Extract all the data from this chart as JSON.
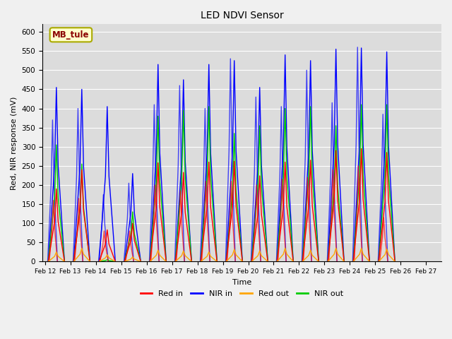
{
  "title": "LED NDVI Sensor",
  "xlabel": "Time",
  "ylabel": "Red, NIR response (mV)",
  "annotation": "MB_tule",
  "ylim": [
    0,
    620
  ],
  "yticks": [
    0,
    50,
    100,
    150,
    200,
    250,
    300,
    350,
    400,
    450,
    500,
    550,
    600
  ],
  "background_color": "#dcdcdc",
  "plot_bg_color": "#dcdcdc",
  "colors": {
    "red_in": "#ff0000",
    "nir_in": "#0000ff",
    "red_out": "#ffa500",
    "nir_out": "#00cc00"
  },
  "legend_labels": [
    "Red in",
    "NIR in",
    "Red out",
    "NIR out"
  ],
  "days": [
    "Feb 12",
    "Feb 13",
    "Feb 14",
    "Feb 15",
    "Feb 16",
    "Feb 17",
    "Feb 18",
    "Feb 19",
    "Feb 20",
    "Feb 21",
    "Feb 22",
    "Feb 23",
    "Feb 24",
    "Feb 25",
    "Feb 26",
    "Feb 27"
  ],
  "spikes": [
    {
      "day": 0.45,
      "red_in": 190,
      "nir_in": 455,
      "nir_in2": 370,
      "red_out": 25,
      "nir_out": 305,
      "red_in2": 160
    },
    {
      "day": 1.45,
      "red_in": 240,
      "nir_in": 450,
      "nir_in2": 400,
      "red_out": 35,
      "nir_out": 255,
      "red_in2": 165
    },
    {
      "day": 2.45,
      "red_in": 83,
      "nir_in": 405,
      "nir_in2": 175,
      "red_out": 18,
      "nir_out": 5,
      "red_in2": 80
    },
    {
      "day": 3.45,
      "red_in": 100,
      "nir_in": 230,
      "nir_in2": 205,
      "red_out": 12,
      "nir_out": 130,
      "red_in2": 80
    },
    {
      "day": 4.45,
      "red_in": 258,
      "nir_in": 515,
      "nir_in2": 410,
      "red_out": 30,
      "nir_out": 380,
      "red_in2": 200
    },
    {
      "day": 5.45,
      "red_in": 233,
      "nir_in": 475,
      "nir_in2": 460,
      "red_out": 28,
      "nir_out": 395,
      "red_in2": 185
    },
    {
      "day": 6.45,
      "red_in": 260,
      "nir_in": 515,
      "nir_in2": 400,
      "red_out": 25,
      "nir_out": 405,
      "red_in2": 210
    },
    {
      "day": 7.45,
      "red_in": 262,
      "nir_in": 525,
      "nir_in2": 530,
      "red_out": 32,
      "nir_out": 335,
      "red_in2": 210
    },
    {
      "day": 8.45,
      "red_in": 224,
      "nir_in": 455,
      "nir_in2": 430,
      "red_out": 28,
      "nir_out": 355,
      "red_in2": 200
    },
    {
      "day": 9.45,
      "red_in": 260,
      "nir_in": 540,
      "nir_in2": 405,
      "red_out": 35,
      "nir_out": 400,
      "red_in2": 215
    },
    {
      "day": 10.45,
      "red_in": 265,
      "nir_in": 525,
      "nir_in2": 500,
      "red_out": 30,
      "nir_out": 405,
      "red_in2": 220
    },
    {
      "day": 11.45,
      "red_in": 290,
      "nir_in": 555,
      "nir_in2": 415,
      "red_out": 35,
      "nir_out": 355,
      "red_in2": 240
    },
    {
      "day": 12.45,
      "red_in": 295,
      "nir_in": 558,
      "nir_in2": 560,
      "red_out": 35,
      "nir_out": 410,
      "red_in2": 250
    },
    {
      "day": 13.45,
      "red_in": 285,
      "nir_in": 548,
      "nir_in2": 385,
      "red_out": 33,
      "nir_out": 410,
      "red_in2": 115
    }
  ]
}
